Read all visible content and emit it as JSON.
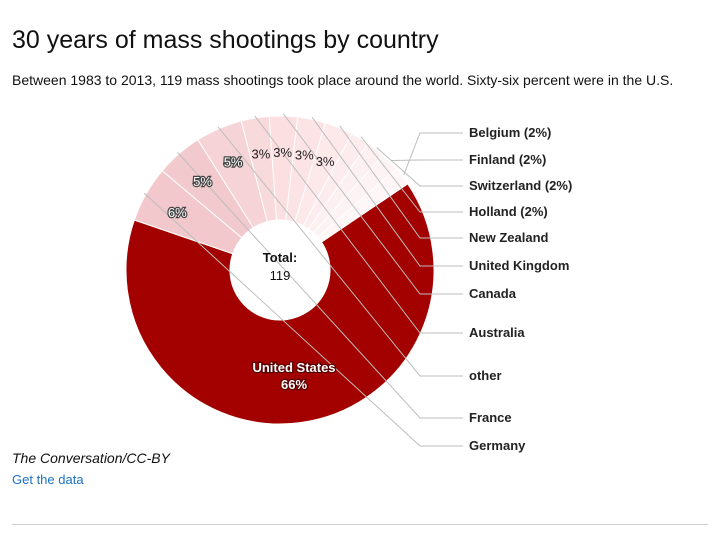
{
  "chart_data": {
    "type": "pie",
    "title": "30 years of mass shootings by country",
    "subtitle": "Between 1983 to 2013, 119 mass shootings took place around the world. Sixty-six percent were in the U.S.",
    "center_label": "Total:",
    "center_value": "119",
    "slices": [
      {
        "name": "United States",
        "percent": 66,
        "display": "66%",
        "color": "#a30000"
      },
      {
        "name": "Germany",
        "percent": 6,
        "display": "6%",
        "color": "#f2c8cc"
      },
      {
        "name": "France",
        "percent": 5,
        "display": "5%",
        "color": "#f2cacd"
      },
      {
        "name": "other",
        "percent": 5,
        "display": "5%",
        "color": "#f5d3d6"
      },
      {
        "name": "Australia",
        "percent": 3,
        "display": "3%",
        "color": "#f8d9dc"
      },
      {
        "name": "Canada",
        "percent": 3,
        "display": "3%",
        "color": "#fbdfe1"
      },
      {
        "name": "United Kingdom",
        "percent": 3,
        "display": "3%",
        "color": "#fce4e6"
      },
      {
        "name": "New Zealand",
        "percent": 3,
        "display": "3%",
        "color": "#fde8ea"
      },
      {
        "name": "Holland (2%)",
        "percent": 2,
        "display": "",
        "color": "#fdecee"
      },
      {
        "name": "Switzerland (2%)",
        "percent": 2,
        "display": "",
        "color": "#fdf0f1"
      },
      {
        "name": "Finland (2%)",
        "percent": 2,
        "display": "",
        "color": "#fef3f4"
      },
      {
        "name": "Belgium (2%)",
        "percent": 2,
        "display": "",
        "color": "#fef6f7"
      }
    ]
  },
  "source": "The Conversation/CC-BY",
  "data_link": "Get the data"
}
